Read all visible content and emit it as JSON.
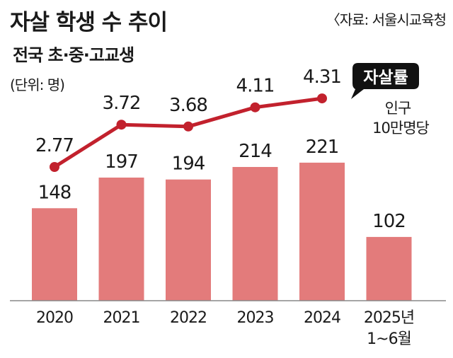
{
  "header": {
    "title": "자살 학생 수 추이",
    "subtitle": "전국 초·중·고교생",
    "unit": "(단위: 명)",
    "source": "〈자료: 서울시교육청"
  },
  "legend": {
    "badge": "자살률",
    "note_line1": "인구",
    "note_line2": "10만명당"
  },
  "colors": {
    "bar": "#e37b7b",
    "line": "#c2212d",
    "baseline": "#888888"
  },
  "chart_data": {
    "type": "bar",
    "categories": [
      "2020",
      "2021",
      "2022",
      "2023",
      "2024",
      "2025년 1~6월"
    ],
    "category_labels": [
      [
        "2020"
      ],
      [
        "2021"
      ],
      [
        "2022"
      ],
      [
        "2023"
      ],
      [
        "2024"
      ],
      [
        "2025년",
        "1~6월"
      ]
    ],
    "series": [
      {
        "type": "bar",
        "values": [
          148,
          197,
          194,
          214,
          221,
          102
        ],
        "labels": [
          "148",
          "197",
          "194",
          "214",
          "221",
          "102"
        ]
      },
      {
        "name": "자살률",
        "type": "line",
        "values": [
          2.77,
          3.72,
          3.68,
          4.11,
          4.31,
          null
        ],
        "labels": [
          "2.77",
          "3.72",
          "3.68",
          "4.11",
          "4.31",
          ""
        ]
      }
    ]
  }
}
